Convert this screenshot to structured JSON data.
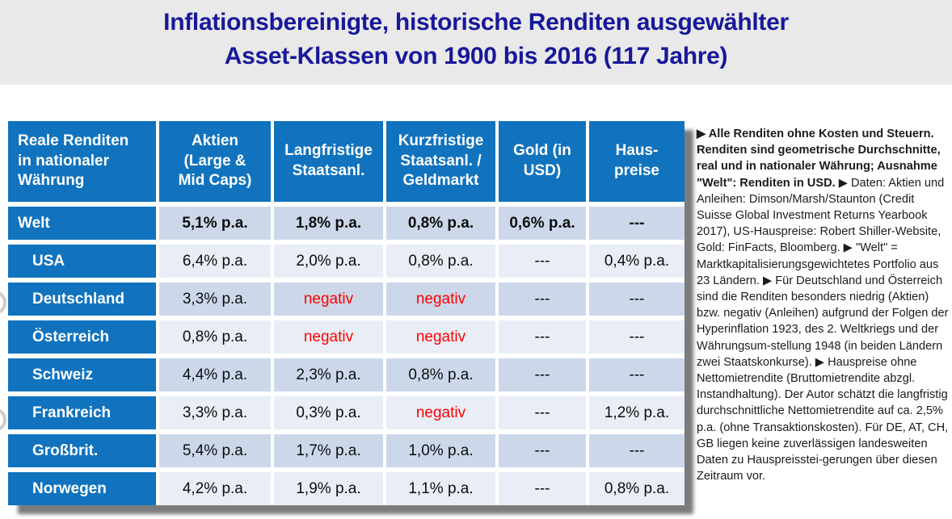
{
  "title": {
    "text": "Inflationsbereinigte, historische Renditen ausgewählter\nAsset-Klassen von 1900 bis 2016 (117 Jahre)"
  },
  "table": {
    "corner_header": "Reale Renditen\nin nationaler\nWährung",
    "column_headers": [
      "Aktien\n(Large &\nMid Caps)",
      "Langfristige\nStaatsanl.",
      "Kurzfristige\nStaatsanl. /\nGeldmarkt",
      "Gold (in\nUSD)",
      "Haus-\npreise"
    ],
    "rows": [
      {
        "label": "Welt",
        "values": [
          "5,1% p.a.",
          "1,8% p.a.",
          "0,8% p.a.",
          "0,6% p.a.",
          "---"
        ]
      },
      {
        "label": "USA",
        "values": [
          "6,4% p.a.",
          "2,0% p.a.",
          "0,8% p.a.",
          "---",
          "0,4% p.a."
        ]
      },
      {
        "label": "Deutschland",
        "values": [
          "3,3% p.a.",
          "negativ",
          "negativ",
          "---",
          "---"
        ]
      },
      {
        "label": "Österreich",
        "values": [
          "0,8% p.a.",
          "negativ",
          "negativ",
          "---",
          "---"
        ]
      },
      {
        "label": "Schweiz",
        "values": [
          "4,4% p.a.",
          "2,3% p.a.",
          "0,8% p.a.",
          "---",
          "---"
        ]
      },
      {
        "label": "Frankreich",
        "values": [
          "3,3% p.a.",
          "0,3% p.a.",
          "negativ",
          "---",
          "1,2% p.a."
        ]
      },
      {
        "label": "Großbrit.",
        "values": [
          "5,4% p.a.",
          "1,7% p.a.",
          "1,0% p.a.",
          "---",
          "---"
        ]
      },
      {
        "label": "Norwegen",
        "values": [
          "4,2% p.a.",
          "1,9% p.a.",
          "1,1% p.a.",
          "---",
          "0,8% p.a."
        ]
      }
    ]
  },
  "notes": {
    "bold_part": "▶ Alle Renditen ohne Kosten und Steuern. Renditen sind geometrische Durchschnitte, real und in nationaler Währung; Ausnahme \"Welt\": Renditen in USD. ",
    "regular_part": "▶ Daten: Aktien und Anleihen: Dimson/Marsh/Staunton (Credit Suisse Global Investment Returns Yearbook 2017), US-Hauspreise: Robert Shiller-Website, Gold: FinFacts, Bloomberg. ▶ \"Welt\" = Marktkapitalisierungsgewichtetes Portfolio aus 23 Ländern. ▶ Für Deutschland und Österreich sind die Renditen besonders niedrig (Aktien) bzw. negativ (Anleihen) aufgrund der Folgen der Hyperinflation 1923, des 2. Weltkriegs und der Währungsum-stellung 1948 (in beiden Ländern zwei Staatskonkurse). ▶ Hauspreise ohne Nettomietrendite (Bruttomietrendite abzgl. Instandhaltung). Der Autor schätzt die langfristig durchschnittliche Nettomietrendite auf ca. 2,5% p.a. (ohne Transaktionskosten). Für DE, AT, CH, GB liegen keine zuverlässigen landesweiten Daten zu Hauspreisstei-gerungen über diesen Zeitraum vor."
  },
  "colors": {
    "header_blue": "#1173be",
    "row_tint_dark": "#ccd8ea",
    "row_tint_light": "#e9eef6",
    "negative_red": "#fe0000",
    "title_blue": "#18189b",
    "title_band_gray": "#e9e9e9"
  },
  "chart_data": {
    "type": "table",
    "title": "Inflationsbereinigte, historische Renditen ausgewählter Asset-Klassen von 1900 bis 2016 (117 Jahre)",
    "row_header": "Reale Renditen in nationaler Währung",
    "columns": [
      "Aktien (Large & Mid Caps)",
      "Langfristige Staatsanl.",
      "Kurzfristige Staatsanl. / Geldmarkt",
      "Gold (in USD)",
      "Haus-preise"
    ],
    "rows": [
      {
        "label": "Welt",
        "values": [
          "5,1% p.a.",
          "1,8% p.a.",
          "0,8% p.a.",
          "0,6% p.a.",
          "---"
        ]
      },
      {
        "label": "USA",
        "values": [
          "6,4% p.a.",
          "2,0% p.a.",
          "0,8% p.a.",
          "---",
          "0,4% p.a."
        ]
      },
      {
        "label": "Deutschland",
        "values": [
          "3,3% p.a.",
          "negativ",
          "negativ",
          "---",
          "---"
        ]
      },
      {
        "label": "Österreich",
        "values": [
          "0,8% p.a.",
          "negativ",
          "negativ",
          "---",
          "---"
        ]
      },
      {
        "label": "Schweiz",
        "values": [
          "4,4% p.a.",
          "2,3% p.a.",
          "0,8% p.a.",
          "---",
          "---"
        ]
      },
      {
        "label": "Frankreich",
        "values": [
          "3,3% p.a.",
          "0,3% p.a.",
          "negativ",
          "---",
          "1,2% p.a."
        ]
      },
      {
        "label": "Großbrit.",
        "values": [
          "5,4% p.a.",
          "1,7% p.a.",
          "1,0% p.a.",
          "---",
          "---"
        ]
      },
      {
        "label": "Norwegen",
        "values": [
          "4,2% p.a.",
          "1,9% p.a.",
          "1,1% p.a.",
          "---",
          "0,8% p.a."
        ]
      }
    ]
  }
}
